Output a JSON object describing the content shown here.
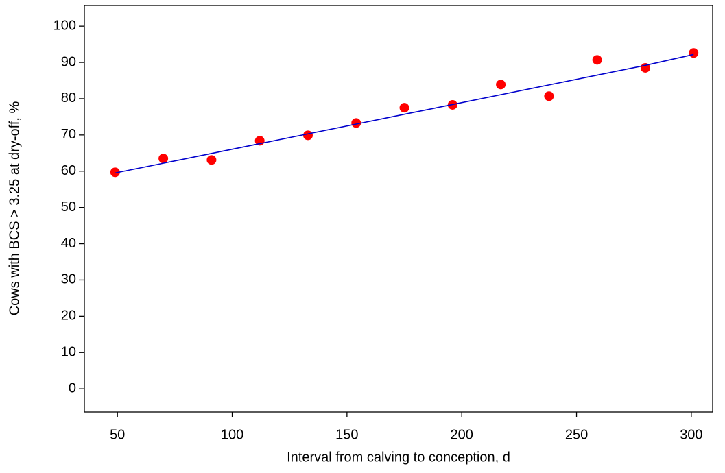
{
  "chart_data": {
    "type": "scatter",
    "xlabel": "Interval from calving to conception, d",
    "ylabel": "Cows with BCS > 3.25 at dry-off, %",
    "x": [
      49,
      70,
      91,
      112,
      133,
      154,
      175,
      196,
      217,
      238,
      259,
      280,
      301
    ],
    "series": [
      {
        "color": "#ff0000",
        "marker": "circle",
        "values": [
          59.7,
          63.5,
          63.1,
          68.4,
          69.9,
          73.3,
          77.5,
          78.3,
          83.9,
          80.7,
          90.7,
          88.5,
          92.6
        ]
      },
      {
        "color": "#0000cc",
        "marker": "line",
        "values": [
          59.5,
          62.2,
          64.9,
          67.6,
          70.3,
          73.0,
          75.7,
          78.4,
          81.1,
          83.8,
          86.5,
          89.2,
          92.2
        ]
      }
    ],
    "xlim": [
      35.6,
      309.3
    ],
    "xticks": [
      50,
      100,
      150,
      200,
      250,
      300
    ],
    "ylim": [
      -6.4,
      105.7
    ],
    "yticks": [
      0,
      10,
      20,
      30,
      40,
      50,
      60,
      70,
      80,
      90,
      100
    ],
    "grid": false
  }
}
